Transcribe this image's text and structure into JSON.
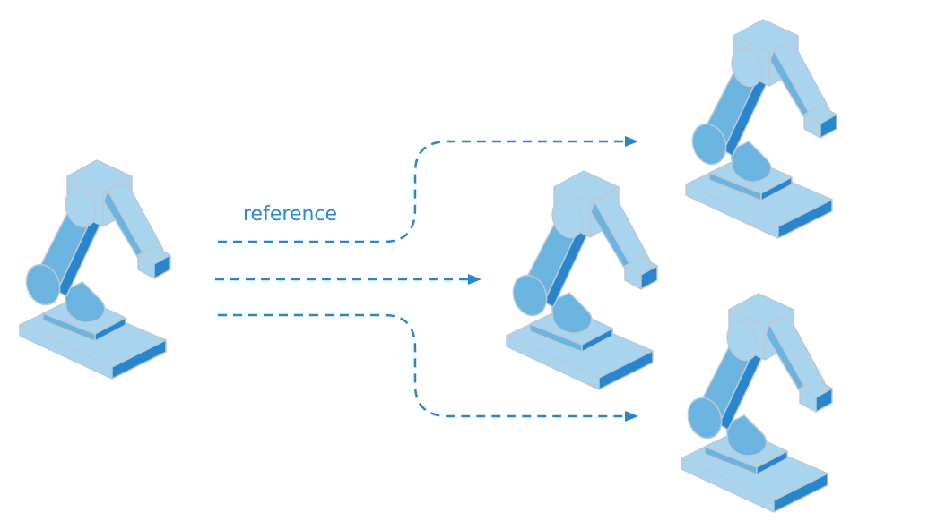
{
  "label": "reference"
}
